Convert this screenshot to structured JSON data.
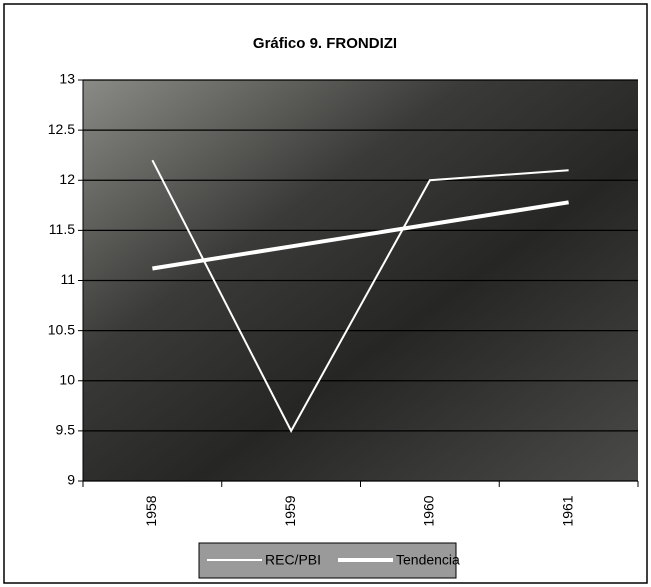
{
  "chart_data": {
    "type": "line",
    "title": "Gráfico 9. FRONDIZI",
    "categories": [
      "1958",
      "1959",
      "1960",
      "1961"
    ],
    "series": [
      {
        "name": "REC/PBI",
        "color": "#ffffff",
        "values": [
          12.2,
          9.5,
          12.0,
          12.1
        ]
      },
      {
        "name": "Tendencia",
        "color": "#ffffff",
        "values": [
          11.12,
          11.34,
          11.56,
          11.78
        ]
      }
    ],
    "ylim": [
      9,
      13
    ],
    "yticks": [
      9,
      9.5,
      10,
      10.5,
      11,
      11.5,
      12,
      12.5,
      13
    ],
    "grid": true,
    "legend": "bottom"
  }
}
